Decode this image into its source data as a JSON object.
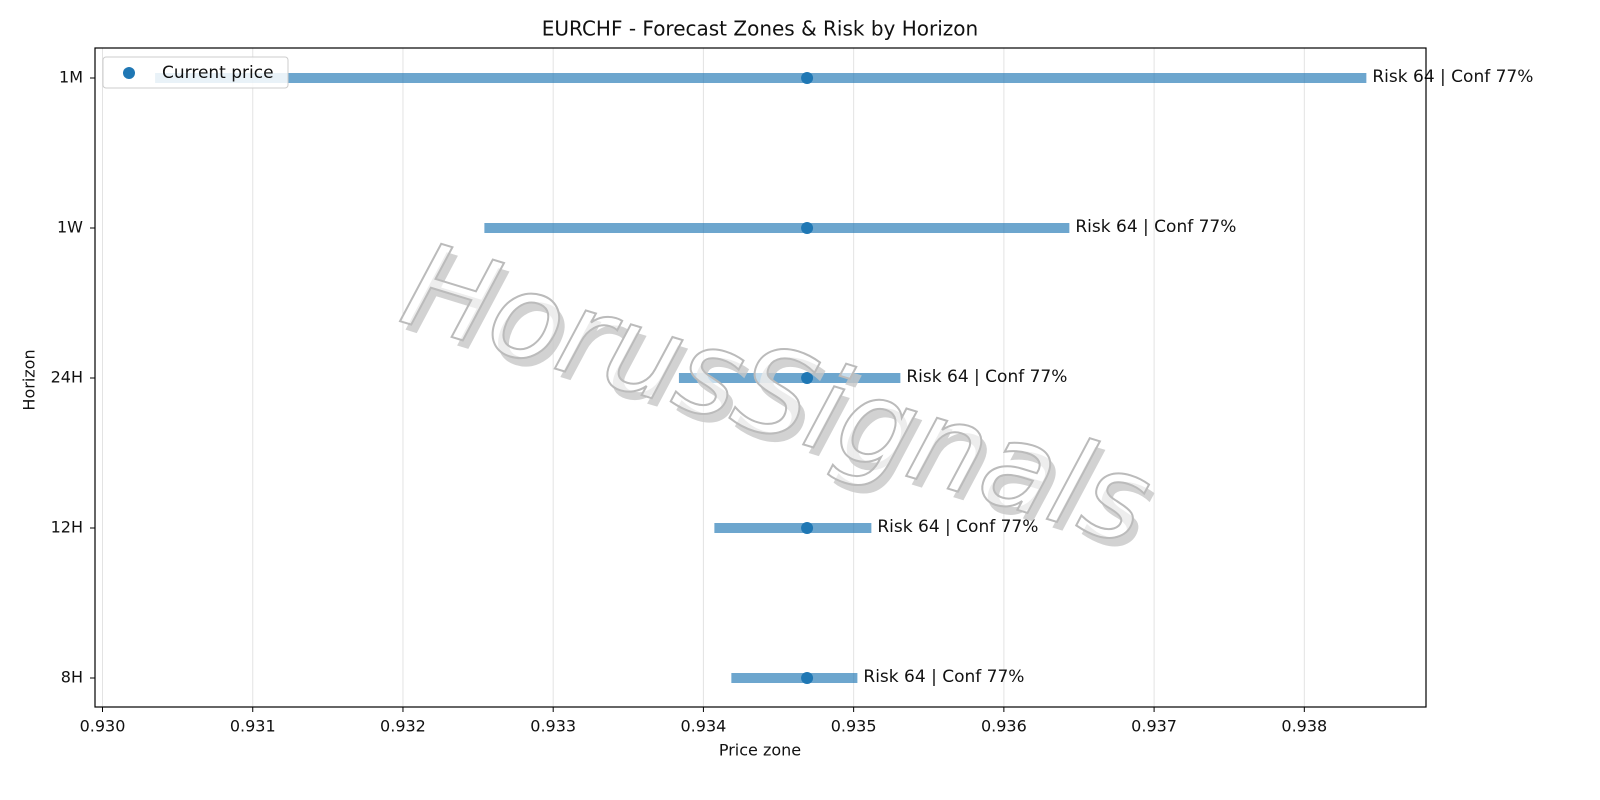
{
  "chart_data": {
    "type": "range",
    "title": "EURCHF - Forecast Zones & Risk by Horizon",
    "x_label": "Price zone",
    "y_label": "Horizon",
    "categories": [
      "8H",
      "12H",
      "24H",
      "1W",
      "1M"
    ],
    "zones": {
      "color": "#1f77b4",
      "low": [
        0.934186,
        0.934073,
        0.933837,
        0.932542,
        0.93035
      ],
      "high": [
        0.935025,
        0.935118,
        0.935311,
        0.936436,
        0.938413
      ]
    },
    "series": [
      {
        "name": "Current price",
        "color": "#1f77b4",
        "values": [
          0.93469,
          0.93469,
          0.93469,
          0.93469,
          0.93469
        ]
      }
    ],
    "annotations": [
      "Risk 64 | Conf 77%",
      "Risk 64 | Conf 77%",
      "Risk 64 | Conf 77%",
      "Risk 64 | Conf 77%",
      "Risk 64 | Conf 77%"
    ],
    "xlim": [
      0.92995,
      0.93881
    ],
    "xticks": [
      {
        "value": 0.93,
        "label": "0.930"
      },
      {
        "value": 0.931,
        "label": "0.931"
      },
      {
        "value": 0.932,
        "label": "0.932"
      },
      {
        "value": 0.933,
        "label": "0.933"
      },
      {
        "value": 0.934,
        "label": "0.934"
      },
      {
        "value": 0.935,
        "label": "0.935"
      },
      {
        "value": 0.936,
        "label": "0.936"
      },
      {
        "value": 0.937,
        "label": "0.937"
      },
      {
        "value": 0.938,
        "label": "0.938"
      }
    ],
    "grid": true,
    "legend": "upper left",
    "watermark": "HorusSignals"
  }
}
